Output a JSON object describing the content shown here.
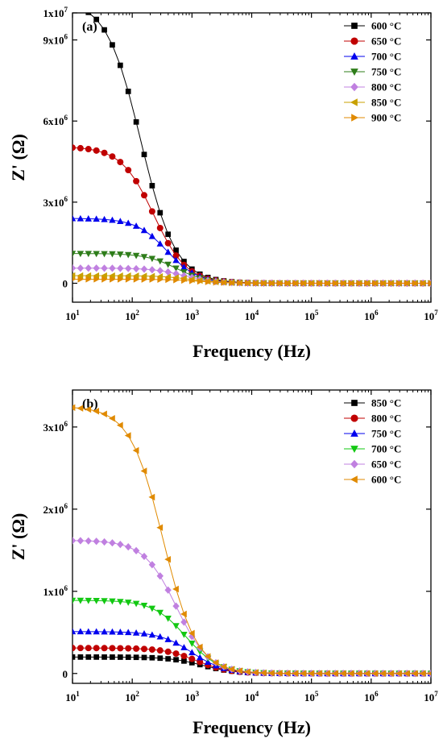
{
  "chart_data": [
    {
      "panel_label": "(a)",
      "type": "line",
      "xlabel": "Frequency (Hz)",
      "ylabel": "Z' (Ω)",
      "x_scale": "log",
      "xlim": [
        10,
        10000000
      ],
      "ylim": [
        -700000,
        10000000
      ],
      "x_ticks": [
        {
          "value": 10,
          "mant": "10",
          "exp": "1"
        },
        {
          "value": 100,
          "mant": "10",
          "exp": "2"
        },
        {
          "value": 1000,
          "mant": "10",
          "exp": "3"
        },
        {
          "value": 10000,
          "mant": "10",
          "exp": "4"
        },
        {
          "value": 100000,
          "mant": "10",
          "exp": "5"
        },
        {
          "value": 1000000,
          "mant": "10",
          "exp": "6"
        },
        {
          "value": 10000000,
          "mant": "10",
          "exp": "7"
        }
      ],
      "y_ticks": [
        {
          "value": 0,
          "mant": "0",
          "exp": ""
        },
        {
          "value": 3000000,
          "mant": "3x10",
          "exp": "6"
        },
        {
          "value": 6000000,
          "mant": "6x10",
          "exp": "6"
        },
        {
          "value": 9000000,
          "mant": "9x10",
          "exp": "6"
        },
        {
          "value": 10000000,
          "mant": "1x10",
          "exp": "7"
        }
      ],
      "legend_position": "top-right",
      "grid": false,
      "series": [
        {
          "name": "600 °C",
          "color": "#000000",
          "marker": "square",
          "z0": 10500000,
          "fc": 140,
          "n": 0.75,
          "thin": 0
        },
        {
          "name": "650 °C",
          "color": "#c00000",
          "marker": "circle",
          "z0": 5050000,
          "fc": 230,
          "n": 0.8,
          "thin": 0
        },
        {
          "name": "700 °C",
          "color": "#0000ee",
          "marker": "triangle-up",
          "z0": 2400000,
          "fc": 380,
          "n": 0.85,
          "thin": 0
        },
        {
          "name": "750 °C",
          "color": "#2e7d1a",
          "marker": "triangle-down",
          "z0": 1100000,
          "fc": 550,
          "n": 0.85,
          "thin": 0
        },
        {
          "name": "800 °C",
          "color": "#c080e0",
          "marker": "diamond",
          "z0": 560000,
          "fc": 750,
          "n": 0.85,
          "thin": 0
        },
        {
          "name": "850 °C",
          "color": "#c8a000",
          "marker": "triangle-left",
          "z0": 280000,
          "fc": 1000,
          "n": 0.85,
          "thin": 0
        },
        {
          "name": "900 °C",
          "color": "#e08a00",
          "marker": "triangle-right",
          "z0": 150000,
          "fc": 1300,
          "n": 0.85,
          "thin": 0
        }
      ]
    },
    {
      "panel_label": "(b)",
      "type": "line",
      "xlabel": "Frequency (Hz)",
      "ylabel": "Z' (Ω)",
      "x_scale": "log",
      "xlim": [
        10,
        10000000
      ],
      "ylim": [
        -120000,
        3450000
      ],
      "x_ticks": [
        {
          "value": 10,
          "mant": "10",
          "exp": "1"
        },
        {
          "value": 100,
          "mant": "10",
          "exp": "2"
        },
        {
          "value": 1000,
          "mant": "10",
          "exp": "3"
        },
        {
          "value": 10000,
          "mant": "10",
          "exp": "4"
        },
        {
          "value": 100000,
          "mant": "10",
          "exp": "5"
        },
        {
          "value": 1000000,
          "mant": "10",
          "exp": "6"
        },
        {
          "value": 10000000,
          "mant": "10",
          "exp": "7"
        }
      ],
      "y_ticks": [
        {
          "value": 0,
          "mant": "0",
          "exp": ""
        },
        {
          "value": 1000000,
          "mant": "1x10",
          "exp": "6"
        },
        {
          "value": 2000000,
          "mant": "2x10",
          "exp": "6"
        },
        {
          "value": 3000000,
          "mant": "3x10",
          "exp": "6"
        }
      ],
      "legend_position": "top-right",
      "grid": false,
      "series": [
        {
          "name": "850 °C",
          "color": "#000000",
          "marker": "square",
          "z0": 200000,
          "fc": 1500,
          "n": 0.8,
          "thin": 0
        },
        {
          "name": "800 °C",
          "color": "#c00000",
          "marker": "circle",
          "z0": 310000,
          "fc": 1200,
          "n": 0.8,
          "thin": 0
        },
        {
          "name": "750 °C",
          "color": "#0000ee",
          "marker": "triangle-up",
          "z0": 510000,
          "fc": 1000,
          "n": 0.8,
          "thin": 0
        },
        {
          "name": "700 °C",
          "color": "#12c812",
          "marker": "triangle-down",
          "z0": 890000,
          "fc": 800,
          "n": 0.8,
          "thin": 0
        },
        {
          "name": "650 °C",
          "color": "#c080e0",
          "marker": "diamond",
          "z0": 1620000,
          "fc": 550,
          "n": 0.8,
          "thin": 0
        },
        {
          "name": "600 °C",
          "color": "#e08a00",
          "marker": "triangle-left",
          "z0": 3250000,
          "fc": 330,
          "n": 0.78,
          "thin": 0
        }
      ]
    }
  ]
}
